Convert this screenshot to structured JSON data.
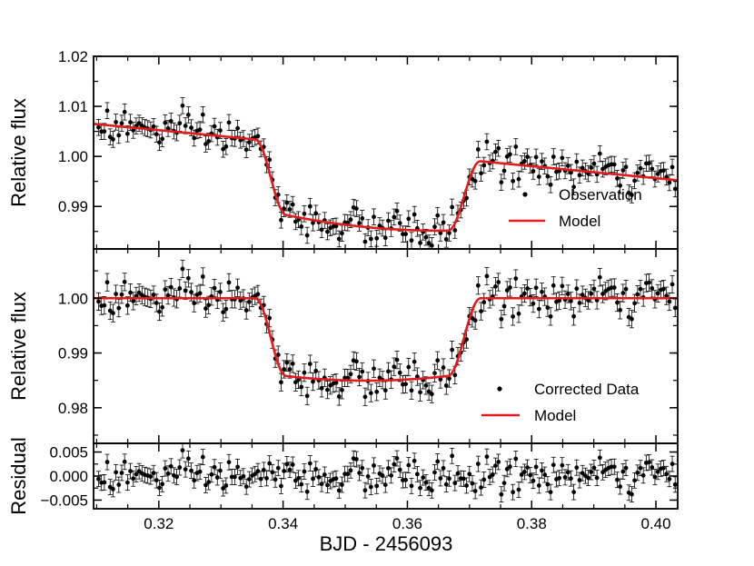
{
  "chart_data": {
    "type": "scatter",
    "xlabel": "BJD - 2456093",
    "xlim": [
      0.3095,
      0.4035
    ],
    "x_ticks": [
      0.32,
      0.34,
      0.36,
      0.38,
      0.4
    ],
    "x_tick_labels": [
      "0.32",
      "0.34",
      "0.36",
      "0.38",
      "0.40"
    ],
    "panels": [
      {
        "id": "raw",
        "ylabel": "Relative flux",
        "ylim": [
          0.9815,
          1.02
        ],
        "y_ticks": [
          0.99,
          1.0,
          1.01,
          1.02
        ],
        "y_tick_labels": [
          "0.99",
          "1.00",
          "1.01",
          "1.02"
        ],
        "legend": [
          {
            "type": "marker",
            "label": "Observation"
          },
          {
            "type": "line",
            "label": "Model"
          }
        ],
        "model": {
          "color": "#e41a1c",
          "oot_start": 1.0065,
          "oot_slope_per_day": -0.12,
          "transit_depth": 0.0145,
          "ingress_start": 0.3355,
          "ingress_end": 0.3405,
          "egress_start": 0.3665,
          "egress_end": 0.3718,
          "noise_sigma": 0.0018,
          "errorbar_half": 0.0016,
          "n_points": 200
        }
      },
      {
        "id": "corrected",
        "ylabel": "Relative flux",
        "ylim": [
          0.9735,
          1.009
        ],
        "y_ticks": [
          0.98,
          0.99,
          1.0
        ],
        "y_tick_labels": [
          "0.98",
          "0.99",
          "1.00"
        ],
        "legend": [
          {
            "type": "marker",
            "label": "Corrected Data"
          },
          {
            "type": "line",
            "label": "Model"
          }
        ],
        "model": {
          "color": "#e41a1c",
          "oot_level": 1.0,
          "transit_depth": 0.0142,
          "ingress_start": 0.3355,
          "ingress_end": 0.3405,
          "egress_start": 0.3665,
          "egress_end": 0.3718,
          "noise_sigma": 0.0018,
          "errorbar_half": 0.0016,
          "n_points": 200
        }
      },
      {
        "id": "residual",
        "ylabel": "Residual",
        "ylim": [
          -0.0068,
          0.0068
        ],
        "y_ticks": [
          -0.005,
          0.0,
          0.005
        ],
        "y_tick_labels": [
          "−0.005",
          "0.000",
          "0.005"
        ],
        "model": {
          "noise_sigma": 0.0018,
          "errorbar_half": 0.0016,
          "n_points": 200
        }
      }
    ]
  }
}
